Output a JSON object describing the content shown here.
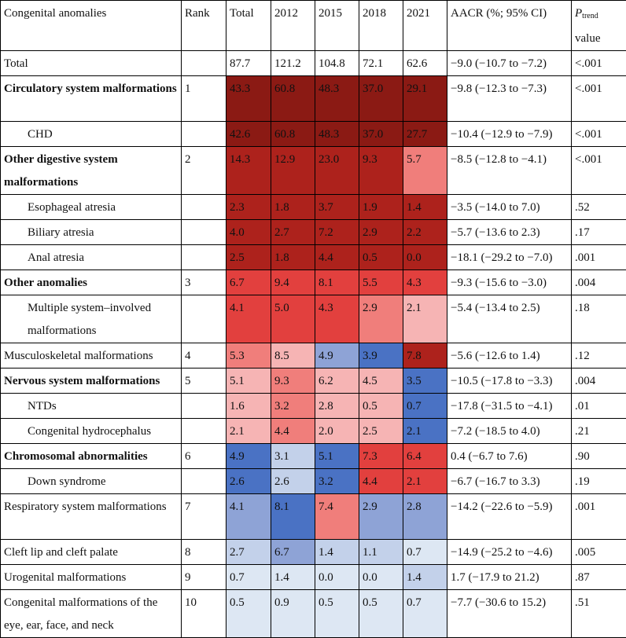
{
  "header": {
    "category": "Congenital anomalies",
    "rank": "Rank",
    "total": "Total",
    "y2012": "2012",
    "y2015": "2015",
    "y2018": "2018",
    "y2021": "2021",
    "aacr": "AACR (%; 95% CI)",
    "ptrend_p": "P",
    "ptrend_sub": "trend",
    "ptrend_value": "value"
  },
  "colors": {
    "darkred": "#8b1a14",
    "red": "#ad221c",
    "midred": "#e2403e",
    "lightred": "#f07e7b",
    "pink": "#f6b4b4",
    "palest": "#dde7f3",
    "pale": "#c3d1ea",
    "lightblue": "#8ea3d6",
    "blue": "#4a72c4"
  },
  "rows": [
    {
      "name": "Total",
      "rank": "",
      "total": "87.7",
      "y2012": "121.2",
      "y2015": "104.8",
      "y2018": "72.1",
      "y2021": "62.6",
      "aacr": "−9.0 (−10.7 to −7.2)",
      "p": "<.001"
    },
    {
      "name": "Circulatory system malformations",
      "rank": "1",
      "total": "43.3",
      "y2012": "60.8",
      "y2015": "48.3",
      "y2018": "37.0",
      "y2021": "29.1",
      "aacr": "−9.8 (−12.3 to −7.3)",
      "p": "<.001"
    },
    {
      "name": "CHD",
      "rank": "",
      "total": "42.6",
      "y2012": "60.8",
      "y2015": "48.3",
      "y2018": "37.0",
      "y2021": "27.7",
      "aacr": "−10.4 (−12.9 to −7.9)",
      "p": "<.001"
    },
    {
      "name": "Other digestive system malformations",
      "rank": "2",
      "total": "14.3",
      "y2012": "12.9",
      "y2015": "23.0",
      "y2018": "9.3",
      "y2021": "5.7",
      "aacr": "−8.5 (−12.8 to −4.1)",
      "p": "<.001"
    },
    {
      "name": "Esophageal atresia",
      "rank": "",
      "total": "2.3",
      "y2012": "1.8",
      "y2015": "3.7",
      "y2018": "1.9",
      "y2021": "1.4",
      "aacr": "−3.5 (−14.0 to 7.0)",
      "p": ".52"
    },
    {
      "name": "Biliary atresia",
      "rank": "",
      "total": "4.0",
      "y2012": "2.7",
      "y2015": "7.2",
      "y2018": "2.9",
      "y2021": "2.2",
      "aacr": "−5.7 (−13.6 to 2.3)",
      "p": ".17"
    },
    {
      "name": "Anal atresia",
      "rank": "",
      "total": "2.5",
      "y2012": "1.8",
      "y2015": "4.4",
      "y2018": "0.5",
      "y2021": "0.0",
      "aacr": "−18.1 (−29.2 to −7.0)",
      "p": ".001"
    },
    {
      "name": "Other anomalies",
      "rank": "3",
      "total": "6.7",
      "y2012": "9.4",
      "y2015": "8.1",
      "y2018": "5.5",
      "y2021": "4.3",
      "aacr": "−9.3 (−15.6 to −3.0)",
      "p": ".004"
    },
    {
      "name": "Multiple system–involved malformations",
      "rank": "",
      "total": "4.1",
      "y2012": "5.0",
      "y2015": "4.3",
      "y2018": "2.9",
      "y2021": "2.1",
      "aacr": "−5.4 (−13.4 to 2.5)",
      "p": ".18"
    },
    {
      "name": "Musculoskeletal malformations",
      "rank": "4",
      "total": "5.3",
      "y2012": "8.5",
      "y2015": "4.9",
      "y2018": "3.9",
      "y2021": "7.8",
      "aacr": "−5.6 (−12.6 to 1.4)",
      "p": ".12"
    },
    {
      "name": "Nervous system malformations",
      "rank": "5",
      "total": "5.1",
      "y2012": "9.3",
      "y2015": "6.2",
      "y2018": "4.5",
      "y2021": "3.5",
      "aacr": "−10.5 (−17.8 to −3.3)",
      "p": ".004"
    },
    {
      "name": "NTDs",
      "rank": "",
      "total": "1.6",
      "y2012": "3.2",
      "y2015": "2.8",
      "y2018": "0.5",
      "y2021": "0.7",
      "aacr": "−17.8 (−31.5 to −4.1)",
      "p": ".01"
    },
    {
      "name": "Congenital hydrocephalus",
      "rank": "",
      "total": "2.1",
      "y2012": "4.4",
      "y2015": "2.0",
      "y2018": "2.5",
      "y2021": "2.1",
      "aacr": "−7.2 (−18.5 to 4.0)",
      "p": ".21"
    },
    {
      "name": "Chromosomal abnormalities",
      "rank": "6",
      "total": "4.9",
      "y2012": "3.1",
      "y2015": "5.1",
      "y2018": "7.3",
      "y2021": "6.4",
      "aacr": "0.4 (−6.7 to 7.6)",
      "p": ".90"
    },
    {
      "name": "Down syndrome",
      "rank": "",
      "total": "2.6",
      "y2012": "2.6",
      "y2015": "3.2",
      "y2018": "4.4",
      "y2021": "2.1",
      "aacr": "−6.7 (−16.7 to 3.3)",
      "p": ".19"
    },
    {
      "name": "Respiratory system malformations",
      "rank": "7",
      "total": "4.1",
      "y2012": "8.1",
      "y2015": "7.4",
      "y2018": "2.9",
      "y2021": "2.8",
      "aacr": "−14.2 (−22.6 to −5.9)",
      "p": ".001"
    },
    {
      "name": "Cleft lip and cleft palate",
      "rank": "8",
      "total": "2.7",
      "y2012": "6.7",
      "y2015": "1.4",
      "y2018": "1.1",
      "y2021": "0.7",
      "aacr": "−14.9 (−25.2 to −4.6)",
      "p": ".005"
    },
    {
      "name": "Urogenital malformations",
      "rank": "9",
      "total": "0.7",
      "y2012": "1.4",
      "y2015": "0.0",
      "y2018": "0.0",
      "y2021": "1.4",
      "aacr": "1.7 (−17.9 to 21.2)",
      "p": ".87"
    },
    {
      "name": "Congenital malformations of the eye, ear, face, and neck",
      "rank": "10",
      "total": "0.5",
      "y2012": "0.9",
      "y2015": "0.5",
      "y2018": "0.5",
      "y2021": "0.7",
      "aacr": "−7.7 (−30.6 to 15.2)",
      "p": ".51"
    }
  ]
}
